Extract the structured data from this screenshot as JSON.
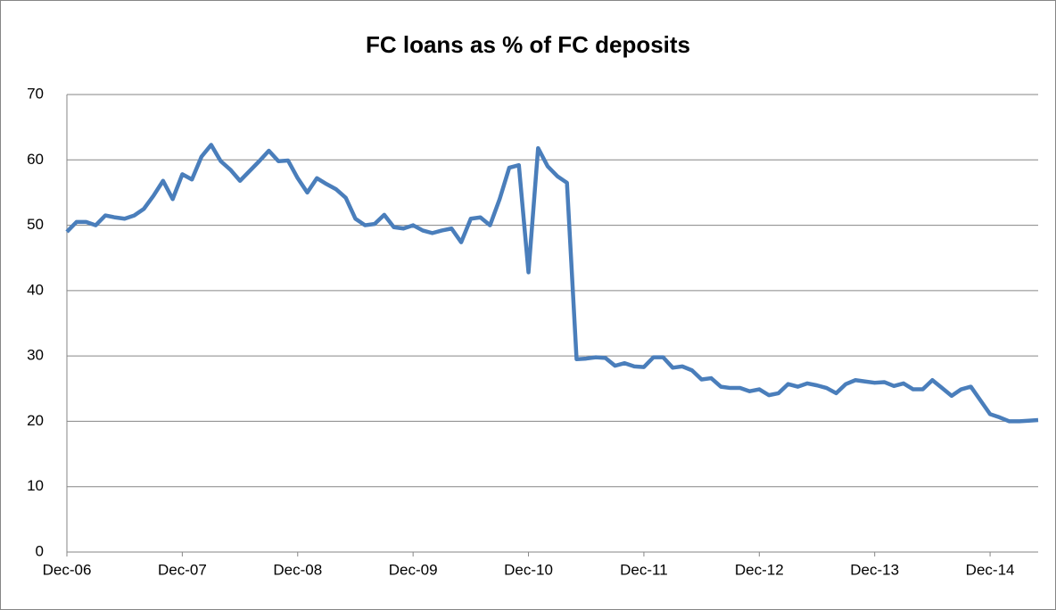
{
  "chart_data": {
    "type": "line",
    "title": "FC loans as % of FC deposits",
    "categories": [
      "Dec-06",
      null,
      null,
      null,
      null,
      null,
      null,
      null,
      null,
      null,
      null,
      null,
      "Dec-07",
      null,
      null,
      null,
      null,
      null,
      null,
      null,
      null,
      null,
      null,
      null,
      "Dec-08",
      null,
      null,
      null,
      null,
      null,
      null,
      null,
      null,
      null,
      null,
      null,
      "Dec-09",
      null,
      null,
      null,
      null,
      null,
      null,
      null,
      null,
      null,
      null,
      null,
      "Dec-10",
      null,
      null,
      null,
      null,
      null,
      null,
      null,
      null,
      null,
      null,
      null,
      "Dec-11",
      null,
      null,
      null,
      null,
      null,
      null,
      null,
      null,
      null,
      null,
      null,
      "Dec-12",
      null,
      null,
      null,
      null,
      null,
      null,
      null,
      null,
      null,
      null,
      null,
      "Dec-13",
      null,
      null,
      null,
      null,
      null,
      null,
      null,
      null,
      null,
      null,
      null,
      "Dec-14",
      null,
      null,
      null,
      null,
      null
    ],
    "series": [
      {
        "name": "FC loans as % of FC deposits",
        "color": "#4a7ebb",
        "values": [
          49,
          50.5,
          50.5,
          50,
          51.5,
          51.2,
          51,
          51.5,
          52.5,
          54.5,
          56.8,
          54,
          57.8,
          57,
          60.5,
          62.3,
          59.8,
          58.5,
          56.8,
          58.3,
          59.8,
          61.4,
          59.8,
          59.9,
          57.2,
          55,
          57.2,
          56.3,
          55.5,
          54.2,
          51,
          50,
          50.2,
          51.6,
          49.7,
          49.5,
          50,
          49.2,
          48.8,
          49.2,
          49.5,
          47.4,
          51,
          51.2,
          50,
          54,
          58.8,
          59.2,
          42.8,
          61.8,
          59,
          57.5,
          56.5,
          29.5,
          29.6,
          29.8,
          29.7,
          28.5,
          28.9,
          28.4,
          28.3,
          29.8,
          29.8,
          28.2,
          28.4,
          27.8,
          26.4,
          26.6,
          25.3,
          25.1,
          25.1,
          24.6,
          24.9,
          24,
          24.3,
          25.7,
          25.3,
          25.8,
          25.5,
          25.1,
          24.3,
          25.7,
          26.3,
          26.1,
          25.9,
          26,
          25.4,
          25.8,
          24.9,
          24.9,
          26.3,
          25.1,
          23.9,
          24.9,
          25.3,
          23.2,
          21.1,
          20.6,
          20,
          20,
          20.1,
          20.2
        ]
      }
    ],
    "ylim": [
      0,
      70
    ],
    "yticks": [
      0,
      10,
      20,
      30,
      40,
      50,
      60,
      70
    ],
    "grid": true
  }
}
